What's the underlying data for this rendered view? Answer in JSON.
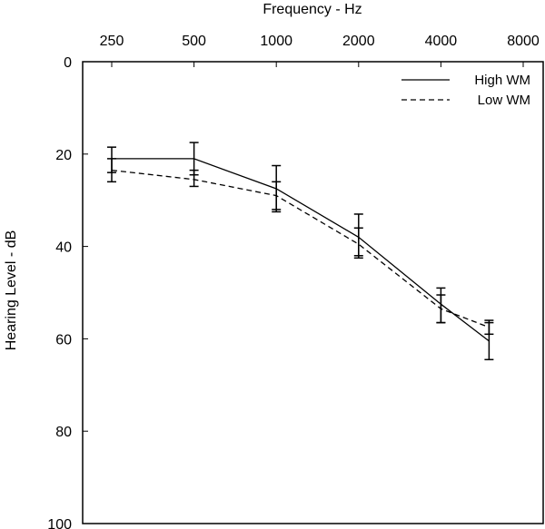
{
  "chart_data": {
    "type": "line",
    "xlabel": "Frequency - Hz",
    "ylabel": "Hearing Level - dB",
    "x_ticks": [
      "250",
      "500",
      "1000",
      "2000",
      "4000",
      "8000"
    ],
    "x_tick_values": [
      250,
      500,
      1000,
      2000,
      4000,
      8000
    ],
    "x_scale": "log2",
    "y_ticks": [
      "0",
      "20",
      "40",
      "60",
      "80",
      "100"
    ],
    "y_tick_values": [
      0,
      20,
      40,
      60,
      80,
      100
    ],
    "ylim": [
      0,
      100
    ],
    "y_inverted": true,
    "grid": false,
    "legend_position": "top-right",
    "series": [
      {
        "name": "High WM",
        "style": "solid",
        "x": [
          250,
          500,
          1000,
          2000,
          4000,
          6000
        ],
        "y": [
          21,
          21,
          27.5,
          38,
          52.5,
          60.5
        ],
        "err_low": [
          18.5,
          17.5,
          22.5,
          33,
          49,
          56.5
        ],
        "err_high": [
          24,
          24.5,
          32.5,
          42.5,
          56.5,
          64.5
        ]
      },
      {
        "name": "Low WM",
        "style": "dashed",
        "x": [
          250,
          500,
          1000,
          2000,
          4000,
          6000
        ],
        "y": [
          23.5,
          25.5,
          29,
          39.5,
          53.5,
          57.5
        ],
        "err_low": [
          21,
          23.5,
          26,
          36,
          50.5,
          56
        ],
        "err_high": [
          26,
          27,
          32,
          42,
          56.5,
          59
        ]
      }
    ]
  }
}
